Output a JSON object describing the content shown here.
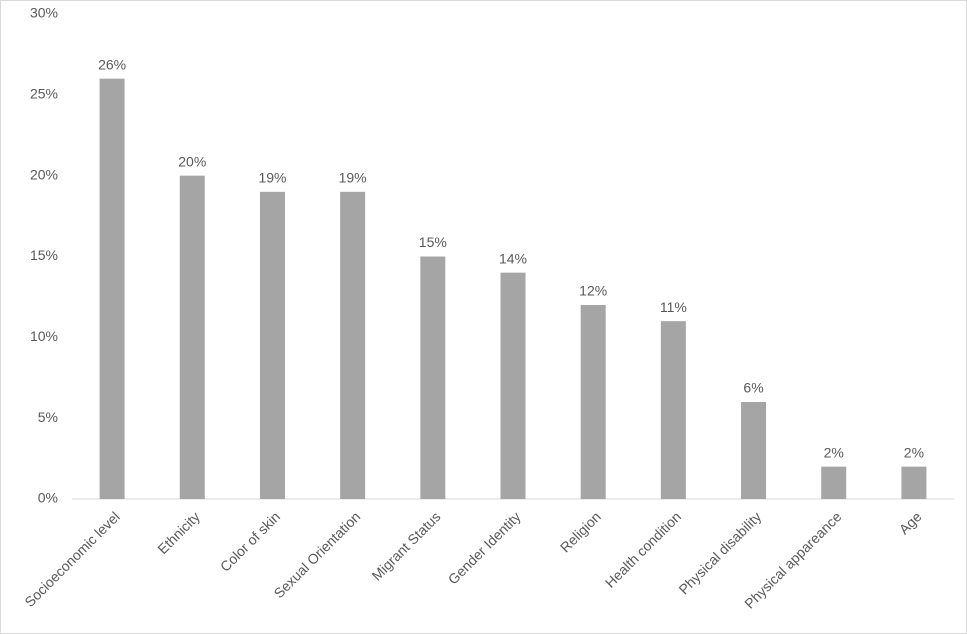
{
  "chart_data": {
    "type": "bar",
    "categories": [
      "Socioeconomic level",
      "Ethnicity",
      "Color of skin",
      "Sexual Orientation",
      "Migrant Status",
      "Gender Identity",
      "Religion",
      "Health condition",
      "Physical disability",
      "Physical appareance",
      "Age"
    ],
    "values": [
      26,
      20,
      19,
      19,
      15,
      14,
      12,
      11,
      6,
      2,
      2
    ],
    "value_labels": [
      "26%",
      "20%",
      "19%",
      "19%",
      "15%",
      "14%",
      "12%",
      "11%",
      "6%",
      "2%",
      "2%"
    ],
    "color": "#a5a5a5",
    "ylim": [
      0,
      30
    ],
    "yticks": [
      {
        "value": 0,
        "label": "0%"
      },
      {
        "value": 5,
        "label": "5%"
      },
      {
        "value": 10,
        "label": "10%"
      },
      {
        "value": 15,
        "label": "15%"
      },
      {
        "value": 20,
        "label": "20%"
      },
      {
        "value": 25,
        "label": "25%"
      },
      {
        "value": 30,
        "label": "30%"
      }
    ],
    "grid": false
  }
}
